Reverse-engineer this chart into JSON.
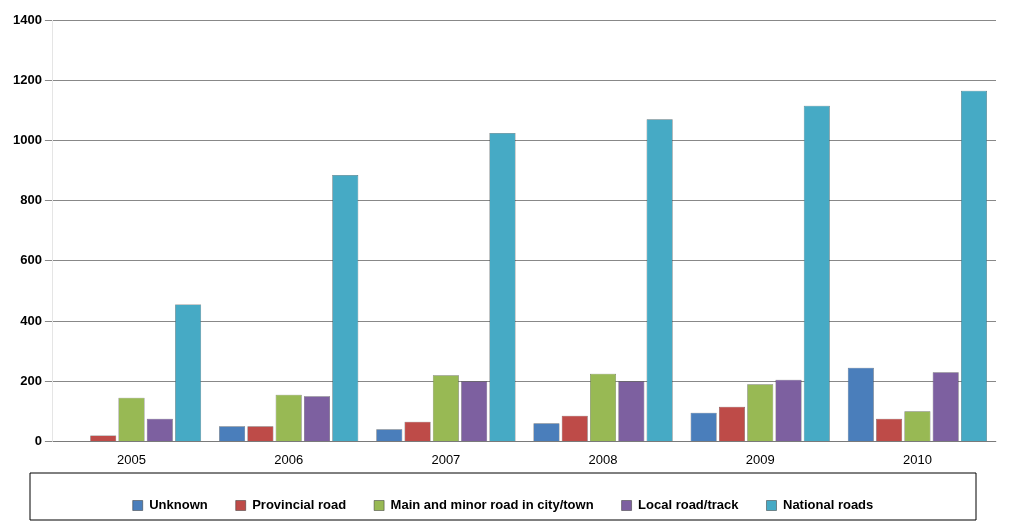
{
  "chart_data": {
    "type": "bar",
    "categories": [
      "2005",
      "2006",
      "2007",
      "2008",
      "2009",
      "2010"
    ],
    "series": [
      {
        "name": "Unknown",
        "color": "#4a7ebb",
        "values": [
          0,
          50,
          40,
          60,
          95,
          245
        ]
      },
      {
        "name": "Provincial road",
        "color": "#be4b48",
        "values": [
          20,
          50,
          65,
          85,
          115,
          75
        ]
      },
      {
        "name": "Main and minor road in city/town",
        "color": "#98b954",
        "values": [
          145,
          155,
          220,
          225,
          190,
          100
        ]
      },
      {
        "name": "Local road/track",
        "color": "#7d60a0",
        "values": [
          75,
          150,
          200,
          200,
          205,
          230
        ]
      },
      {
        "name": "National roads",
        "color": "#46aac5",
        "values": [
          455,
          885,
          1025,
          1070,
          1115,
          1165
        ]
      }
    ],
    "ylim": [
      0,
      1400
    ],
    "yticks": [
      0,
      200,
      400,
      600,
      800,
      1000,
      1200,
      1400
    ],
    "grid": "y",
    "legend": "bottom"
  }
}
